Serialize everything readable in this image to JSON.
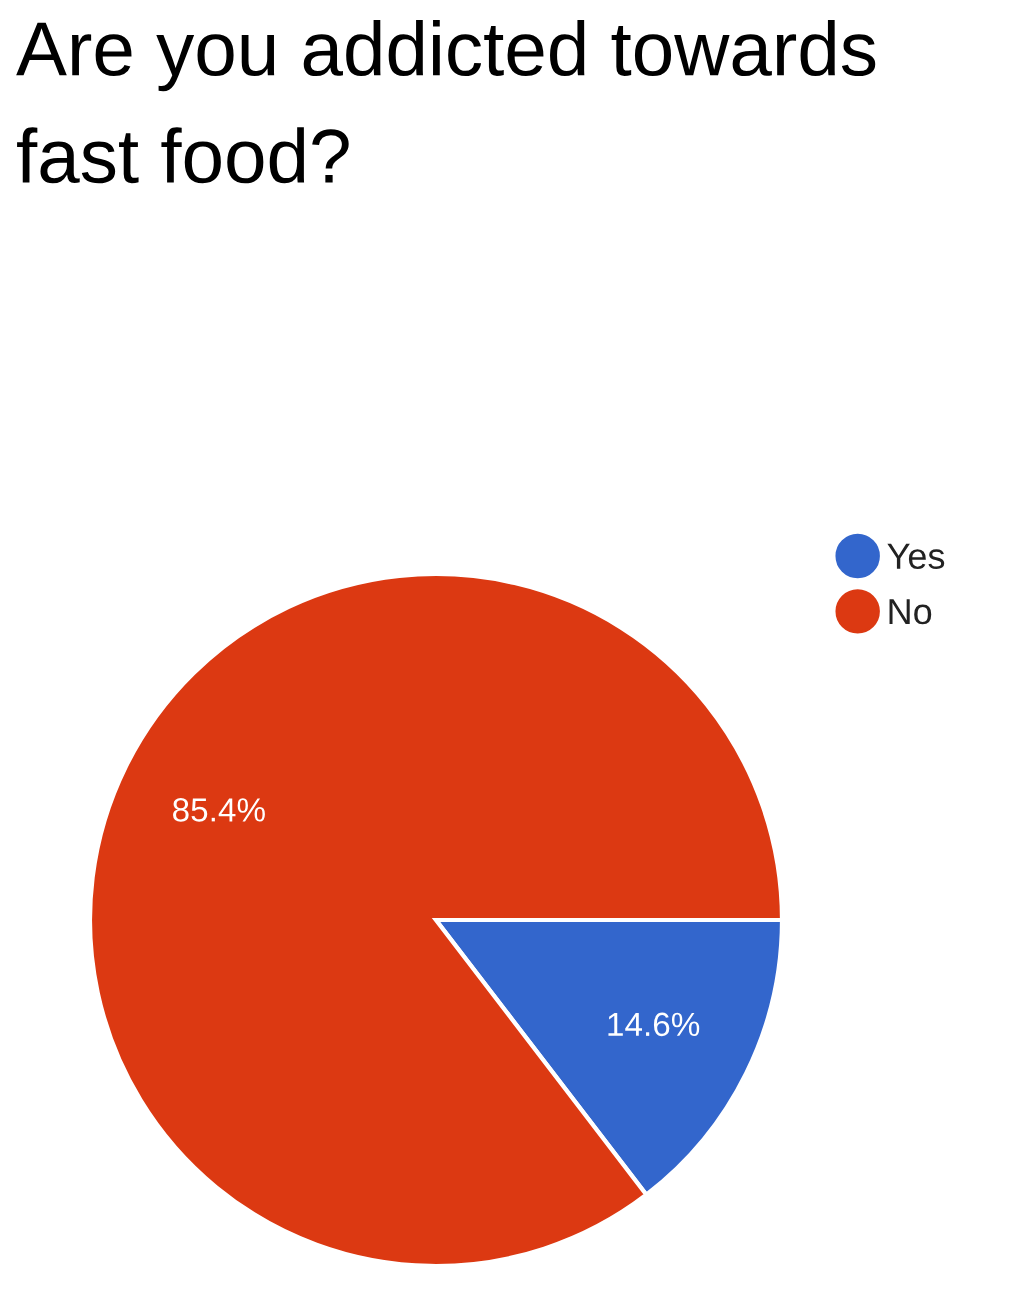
{
  "chart_data": {
    "type": "pie",
    "title": "Are you addicted towards fast food?",
    "categories": [
      "Yes",
      "No"
    ],
    "values": [
      14.6,
      85.4
    ],
    "colors": [
      "#3366cc",
      "#dc3912"
    ],
    "value_labels": [
      "14.6%",
      "85.4%"
    ],
    "legend": "top right",
    "marker": "circle"
  }
}
